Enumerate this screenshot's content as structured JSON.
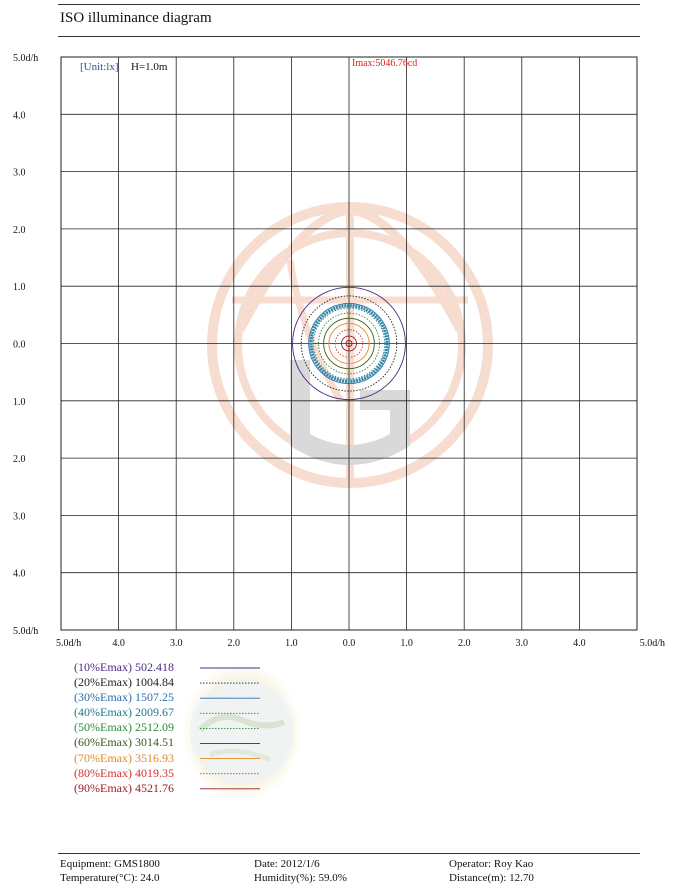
{
  "page": {
    "title": "ISO illuminance diagram"
  },
  "chart_data": {
    "type": "contour",
    "unit_label": "[Unit:lx]",
    "height_label": "H=1.0m",
    "imax_label": "Imax:5046.76cd",
    "corner_label": "5.0d/h",
    "y_tick_labels": [
      "5.0d/h",
      "4.0",
      "3.0",
      "2.0",
      "1.0",
      "0.0",
      "1.0",
      "2.0",
      "3.0",
      "4.0",
      "5.0d/h"
    ],
    "x_tick_labels": [
      "5.0d/h",
      "4.0",
      "3.0",
      "2.0",
      "1.0",
      "0.0",
      "1.0",
      "2.0",
      "3.0",
      "4.0",
      "5.0d/h"
    ],
    "xlim": [
      -5,
      5
    ],
    "ylim": [
      -5,
      5
    ],
    "grid": true,
    "contours": [
      {
        "label": "(10%Emax)",
        "value": "502.418",
        "radius": 0.98,
        "color": "#4a2c86",
        "dash": ""
      },
      {
        "label": "(20%Emax)",
        "value": "1004.84",
        "radius": 0.83,
        "color": "#222222",
        "dash": "1.5,1.5"
      },
      {
        "label": "(30%Emax)",
        "value": "1507.25",
        "radius": 0.7,
        "color": "#2d6db0",
        "dash": ""
      },
      {
        "label": "(40%Emax)",
        "value": "2009.67",
        "radius": 0.62,
        "color": "#1f7a8c",
        "dash": "1.5,1.5"
      },
      {
        "label": "(50%Emax)",
        "value": "2512.09",
        "radius": 0.53,
        "color": "#2e8b3a",
        "dash": "1.5,1.5"
      },
      {
        "label": "(60%Emax)",
        "value": "3014.51",
        "radius": 0.44,
        "color": "#3b5a1e",
        "dash": ""
      },
      {
        "label": "(70%Emax)",
        "value": "3516.93",
        "radius": 0.35,
        "color": "#e08a2a",
        "dash": ""
      },
      {
        "label": "(80%Emax)",
        "value": "4019.35",
        "radius": 0.24,
        "color": "#d8312a",
        "dash": "1.5,1.5"
      },
      {
        "label": "(90%Emax)",
        "value": "4521.76",
        "radius": 0.13,
        "color": "#9b1c1c",
        "dash": ""
      }
    ],
    "max_contour_color": "#2a8aa8"
  },
  "footer": {
    "equipment": "Equipment: GMS1800",
    "date": "Date: 2012/1/6",
    "operator": "Operator: Roy Kao",
    "temperature": "Temperature(°C): 24.0",
    "humidity": "Humidity(%): 59.0%",
    "distance": "Distance(m): 12.70"
  }
}
